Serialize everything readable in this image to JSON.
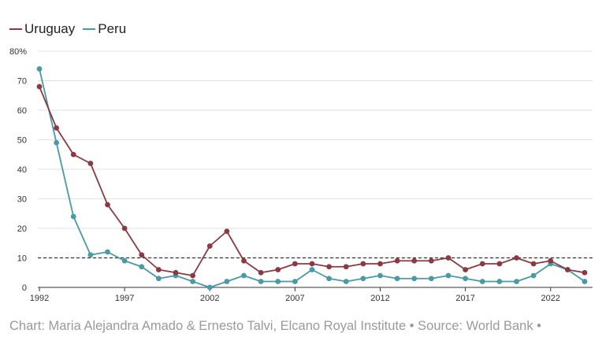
{
  "chart_data": {
    "type": "line",
    "x": [
      1992,
      1993,
      1994,
      1995,
      1996,
      1997,
      1998,
      1999,
      2000,
      2001,
      2002,
      2003,
      2004,
      2005,
      2006,
      2007,
      2008,
      2009,
      2010,
      2011,
      2012,
      2013,
      2014,
      2015,
      2016,
      2017,
      2018,
      2019,
      2020,
      2021,
      2022,
      2023,
      2024
    ],
    "series": [
      {
        "name": "Uruguay",
        "color": "#8b3a44",
        "values": [
          68,
          54,
          45,
          42,
          28,
          20,
          11,
          6,
          5,
          4,
          14,
          19,
          9,
          5,
          6,
          8,
          8,
          7,
          7,
          8,
          8,
          9,
          9,
          9,
          10,
          6,
          8,
          8,
          10,
          8,
          9,
          6,
          5
        ]
      },
      {
        "name": "Peru",
        "color": "#4a9aa5",
        "values": [
          74,
          49,
          24,
          11,
          12,
          9,
          7,
          3,
          4,
          2,
          0,
          2,
          4,
          2,
          2,
          2,
          6,
          3,
          2,
          3,
          4,
          3,
          3,
          3,
          4,
          3,
          2,
          2,
          2,
          4,
          8,
          6,
          2
        ]
      }
    ],
    "xticks": [
      "1992",
      "1997",
      "2002",
      "2007",
      "2012",
      "2017",
      "2022"
    ],
    "yticks": [
      "0",
      "10",
      "20",
      "30",
      "40",
      "50",
      "60",
      "70",
      "80%"
    ],
    "ylim": [
      0,
      80
    ],
    "reference_line": 10,
    "grid": true,
    "legend_position": "top-left"
  },
  "footer": "Chart: Maria Alejandra Amado & Ernesto Talvi, Elcano Royal Institute • Source: World Bank •"
}
